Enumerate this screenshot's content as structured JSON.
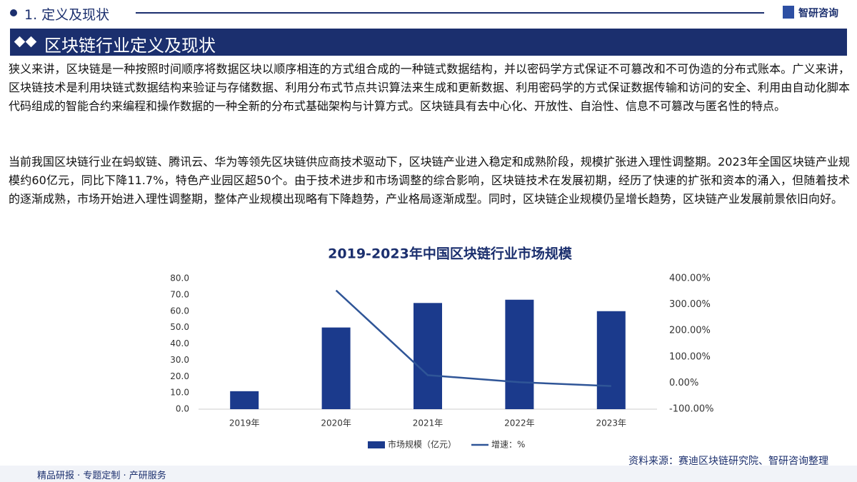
{
  "header": {
    "section": "1. 定义及现状",
    "logo": "智研咨询"
  },
  "banner": {
    "title": "区块链行业定义及现状"
  },
  "paragraphs": [
    "狭义来讲，区块链是一种按照时间顺序将数据区块以顺序相连的方式组合成的一种链式数据结构，并以密码学方式保证不可篡改和不可伪造的分布式账本。广义来讲，区块链技术是利用块链式数据结构来验证与存储数据、利用分布式节点共识算法来生成和更新数据、利用密码学的方式保证数据传输和访问的安全、利用由自动化脚本代码组成的智能合约来编程和操作数据的一种全新的分布式基础架构与计算方式。区块链具有去中心化、开放性、自治性、信息不可篡改与匿名性的特点。",
    "当前我国区块链行业在蚂蚁链、腾讯云、华为等领先区块链供应商技术驱动下，区块链产业进入稳定和成熟阶段，规模扩张进入理性调整期。2023年全国区块链产业规模约60亿元，同比下降11.7%，特色产业园区超50个。由于技术进步和市场调整的综合影响，区块链技术在发展初期，经历了快速的扩张和资本的涌入，但随着技术的逐渐成熟，市场开始进入理性调整期，整体产业规模出现略有下降趋势，产业格局逐渐成型。同时，区块链企业规模仍呈增长趋势，区块链产业发展前景依旧向好。"
  ],
  "chart_data": {
    "type": "bar_line",
    "title": "2019-2023年中国区块链行业市场规模",
    "categories": [
      "2019年",
      "2020年",
      "2021年",
      "2022年",
      "2023年"
    ],
    "series": [
      {
        "name": "市场规模（亿元）",
        "type": "bar",
        "color": "#1b3a8c",
        "values": [
          11,
          50,
          65,
          67,
          60
        ]
      },
      {
        "name": "增速：%",
        "type": "line",
        "axis": "y2",
        "color": "#2f5597",
        "values": [
          null,
          354.5,
          30,
          3.1,
          -11.7
        ]
      }
    ],
    "ylim": [
      0,
      80
    ],
    "yticks": [
      {
        "value": 0,
        "label": "0.0"
      },
      {
        "value": 10,
        "label": "10.0"
      },
      {
        "value": 20,
        "label": "20.0"
      },
      {
        "value": 30,
        "label": "30.0"
      },
      {
        "value": 40,
        "label": "40.0"
      },
      {
        "value": 50,
        "label": "50.0"
      },
      {
        "value": 60,
        "label": "60.0"
      },
      {
        "value": 70,
        "label": "70.0"
      },
      {
        "value": 80,
        "label": "80.0"
      }
    ],
    "y2lim": [
      -100,
      400
    ],
    "y2ticks": [
      {
        "value": -100,
        "label": "-100.00%"
      },
      {
        "value": 0,
        "label": "0.00%"
      },
      {
        "value": 100,
        "label": "100.00%"
      },
      {
        "value": 200,
        "label": "200.00%"
      },
      {
        "value": 300,
        "label": "300.00%"
      },
      {
        "value": 400,
        "label": "400.00%"
      }
    ]
  },
  "source": "资料来源：赛迪区块链研究院、智研咨询整理",
  "footer": "精品研报 · 专题定制 · 产研服务"
}
